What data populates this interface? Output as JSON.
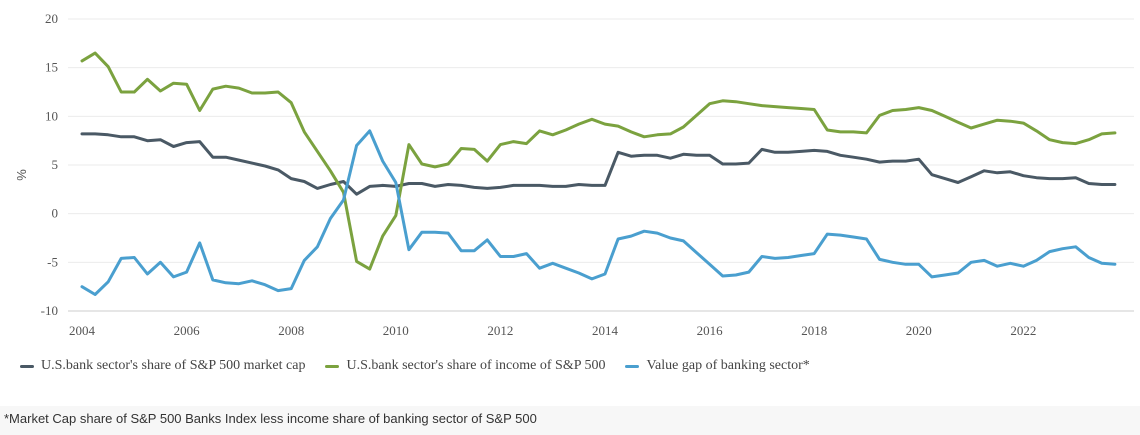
{
  "chart_data": {
    "type": "line",
    "title": "",
    "xlabel": "",
    "ylabel": "%",
    "xlim": [
      2004,
      2023.9
    ],
    "ylim": [
      -10,
      20
    ],
    "y_ticks": [
      -10,
      -5,
      0,
      5,
      10,
      15,
      20
    ],
    "x_ticks": [
      2004,
      2006,
      2008,
      2010,
      2012,
      2014,
      2016,
      2018,
      2020,
      2022
    ],
    "grid": "horizontal",
    "legend_position": "bottom-left",
    "series": [
      {
        "name": "U.S.bank sector's share of S&P 500 market cap",
        "color": "#4a5965",
        "x": [
          2004.0,
          2004.25,
          2004.5,
          2004.75,
          2005.0,
          2005.25,
          2005.5,
          2005.75,
          2006.0,
          2006.25,
          2006.5,
          2006.75,
          2007.0,
          2007.25,
          2007.5,
          2007.75,
          2008.0,
          2008.25,
          2008.5,
          2008.75,
          2009.0,
          2009.25,
          2009.5,
          2009.75,
          2010.0,
          2010.25,
          2010.5,
          2010.75,
          2011.0,
          2011.25,
          2011.5,
          2011.75,
          2012.0,
          2012.25,
          2012.5,
          2012.75,
          2013.0,
          2013.25,
          2013.5,
          2013.75,
          2014.0,
          2014.25,
          2014.5,
          2014.75,
          2015.0,
          2015.25,
          2015.5,
          2015.75,
          2016.0,
          2016.25,
          2016.5,
          2016.75,
          2017.0,
          2017.25,
          2017.5,
          2017.75,
          2018.0,
          2018.25,
          2018.5,
          2018.75,
          2019.0,
          2019.25,
          2019.5,
          2019.75,
          2020.0,
          2020.25,
          2020.5,
          2020.75,
          2021.0,
          2021.25,
          2021.5,
          2021.75,
          2022.0,
          2022.25,
          2022.5,
          2022.75,
          2023.0,
          2023.25,
          2023.5,
          2023.75
        ],
        "values": [
          8.2,
          8.2,
          8.1,
          7.9,
          7.9,
          7.5,
          7.6,
          6.9,
          7.3,
          7.4,
          5.8,
          5.8,
          5.5,
          5.2,
          4.9,
          4.5,
          3.6,
          3.3,
          2.6,
          3.0,
          3.3,
          2.0,
          2.8,
          2.9,
          2.8,
          3.1,
          3.1,
          2.8,
          3.0,
          2.9,
          2.7,
          2.6,
          2.7,
          2.9,
          2.9,
          2.9,
          2.8,
          2.8,
          3.0,
          2.9,
          2.9,
          6.3,
          5.9,
          6.0,
          6.0,
          5.7,
          6.1,
          6.0,
          6.0,
          5.1,
          5.1,
          5.2,
          6.6,
          6.3,
          6.3,
          6.4,
          6.5,
          6.4,
          6.0,
          5.8,
          5.6,
          5.3,
          5.4,
          5.4,
          5.6,
          4.0,
          3.6,
          3.2,
          3.8,
          4.4,
          4.2,
          4.3,
          3.9,
          3.7,
          3.6,
          3.6,
          3.7,
          3.1,
          3.0,
          3.0
        ]
      },
      {
        "name": "U.S.bank sector's share of income of S&P 500",
        "color": "#7ba23f",
        "x": [
          2004.0,
          2004.25,
          2004.5,
          2004.75,
          2005.0,
          2005.25,
          2005.5,
          2005.75,
          2006.0,
          2006.25,
          2006.5,
          2006.75,
          2007.0,
          2007.25,
          2007.5,
          2007.75,
          2008.0,
          2008.25,
          2008.5,
          2008.75,
          2009.0,
          2009.25,
          2009.5,
          2009.75,
          2010.0,
          2010.25,
          2010.5,
          2010.75,
          2011.0,
          2011.25,
          2011.5,
          2011.75,
          2012.0,
          2012.25,
          2012.5,
          2012.75,
          2013.0,
          2013.25,
          2013.5,
          2013.75,
          2014.0,
          2014.25,
          2014.5,
          2014.75,
          2015.0,
          2015.25,
          2015.5,
          2015.75,
          2016.0,
          2016.25,
          2016.5,
          2016.75,
          2017.0,
          2017.25,
          2017.5,
          2017.75,
          2018.0,
          2018.25,
          2018.5,
          2018.75,
          2019.0,
          2019.25,
          2019.5,
          2019.75,
          2020.0,
          2020.25,
          2020.5,
          2020.75,
          2021.0,
          2021.25,
          2021.5,
          2021.75,
          2022.0,
          2022.25,
          2022.5,
          2022.75,
          2023.0,
          2023.25,
          2023.5,
          2023.75
        ],
        "values": [
          15.7,
          16.5,
          15.1,
          12.5,
          12.5,
          13.8,
          12.6,
          13.4,
          13.3,
          10.6,
          12.8,
          13.1,
          12.9,
          12.4,
          12.4,
          12.5,
          11.4,
          8.4,
          6.4,
          4.4,
          2.2,
          -4.9,
          -5.7,
          -2.3,
          -0.2,
          7.1,
          5.1,
          4.8,
          5.1,
          6.7,
          6.6,
          5.4,
          7.1,
          7.4,
          7.2,
          8.5,
          8.1,
          8.6,
          9.2,
          9.7,
          9.2,
          9.0,
          8.4,
          7.9,
          8.1,
          8.2,
          8.9,
          10.1,
          11.3,
          11.6,
          11.5,
          11.3,
          11.1,
          11.0,
          10.9,
          10.8,
          10.7,
          8.6,
          8.4,
          8.4,
          8.3,
          10.1,
          10.6,
          10.7,
          10.9,
          10.6,
          10.0,
          9.4,
          8.8,
          9.2,
          9.6,
          9.5,
          9.3,
          8.5,
          7.6,
          7.3,
          7.2,
          7.6,
          8.2,
          8.3
        ]
      },
      {
        "name": "Value gap of banking sector*",
        "color": "#4a9fcf",
        "x": [
          2004.0,
          2004.25,
          2004.5,
          2004.75,
          2005.0,
          2005.25,
          2005.5,
          2005.75,
          2006.0,
          2006.25,
          2006.5,
          2006.75,
          2007.0,
          2007.25,
          2007.5,
          2007.75,
          2008.0,
          2008.25,
          2008.5,
          2008.75,
          2009.0,
          2009.25,
          2009.5,
          2009.75,
          2010.0,
          2010.25,
          2010.5,
          2010.75,
          2011.0,
          2011.25,
          2011.5,
          2011.75,
          2012.0,
          2012.25,
          2012.5,
          2012.75,
          2013.0,
          2013.25,
          2013.5,
          2013.75,
          2014.0,
          2014.25,
          2014.5,
          2014.75,
          2015.0,
          2015.25,
          2015.5,
          2015.75,
          2016.0,
          2016.25,
          2016.5,
          2016.75,
          2017.0,
          2017.25,
          2017.5,
          2017.75,
          2018.0,
          2018.25,
          2018.5,
          2018.75,
          2019.0,
          2019.25,
          2019.5,
          2019.75,
          2020.0,
          2020.25,
          2020.5,
          2020.75,
          2021.0,
          2021.25,
          2021.5,
          2021.75,
          2022.0,
          2022.25,
          2022.5,
          2022.75,
          2023.0,
          2023.25,
          2023.5,
          2023.75
        ],
        "values": [
          -7.5,
          -8.3,
          -7.0,
          -4.6,
          -4.5,
          -6.2,
          -5.0,
          -6.5,
          -6.0,
          -3.0,
          -6.8,
          -7.1,
          -7.2,
          -6.9,
          -7.3,
          -7.9,
          -7.7,
          -4.8,
          -3.4,
          -0.5,
          1.4,
          7.0,
          8.5,
          5.4,
          3.2,
          -3.7,
          -1.9,
          -1.9,
          -2.0,
          -3.8,
          -3.8,
          -2.7,
          -4.4,
          -4.4,
          -4.1,
          -5.6,
          -5.1,
          -5.6,
          -6.1,
          -6.7,
          -6.2,
          -2.6,
          -2.3,
          -1.8,
          -2.0,
          -2.5,
          -2.8,
          -4.0,
          -5.2,
          -6.4,
          -6.3,
          -6.0,
          -4.4,
          -4.6,
          -4.5,
          -4.3,
          -4.1,
          -2.1,
          -2.2,
          -2.4,
          -2.6,
          -4.7,
          -5.0,
          -5.2,
          -5.2,
          -6.5,
          -6.3,
          -6.1,
          -5.0,
          -4.8,
          -5.4,
          -5.1,
          -5.4,
          -4.8,
          -3.9,
          -3.6,
          -3.4,
          -4.5,
          -5.1,
          -5.2
        ]
      }
    ]
  },
  "legend": {
    "items": [
      {
        "label": "U.S.bank sector's share of S&P 500 market cap",
        "color": "#4a5965"
      },
      {
        "label": "U.S.bank sector's share of income of S&P 500",
        "color": "#7ba23f"
      },
      {
        "label": "Value gap of banking sector*",
        "color": "#4a9fcf"
      }
    ]
  },
  "footnote": "*Market Cap share of S&P 500 Banks Index less income share of banking sector of S&P 500"
}
